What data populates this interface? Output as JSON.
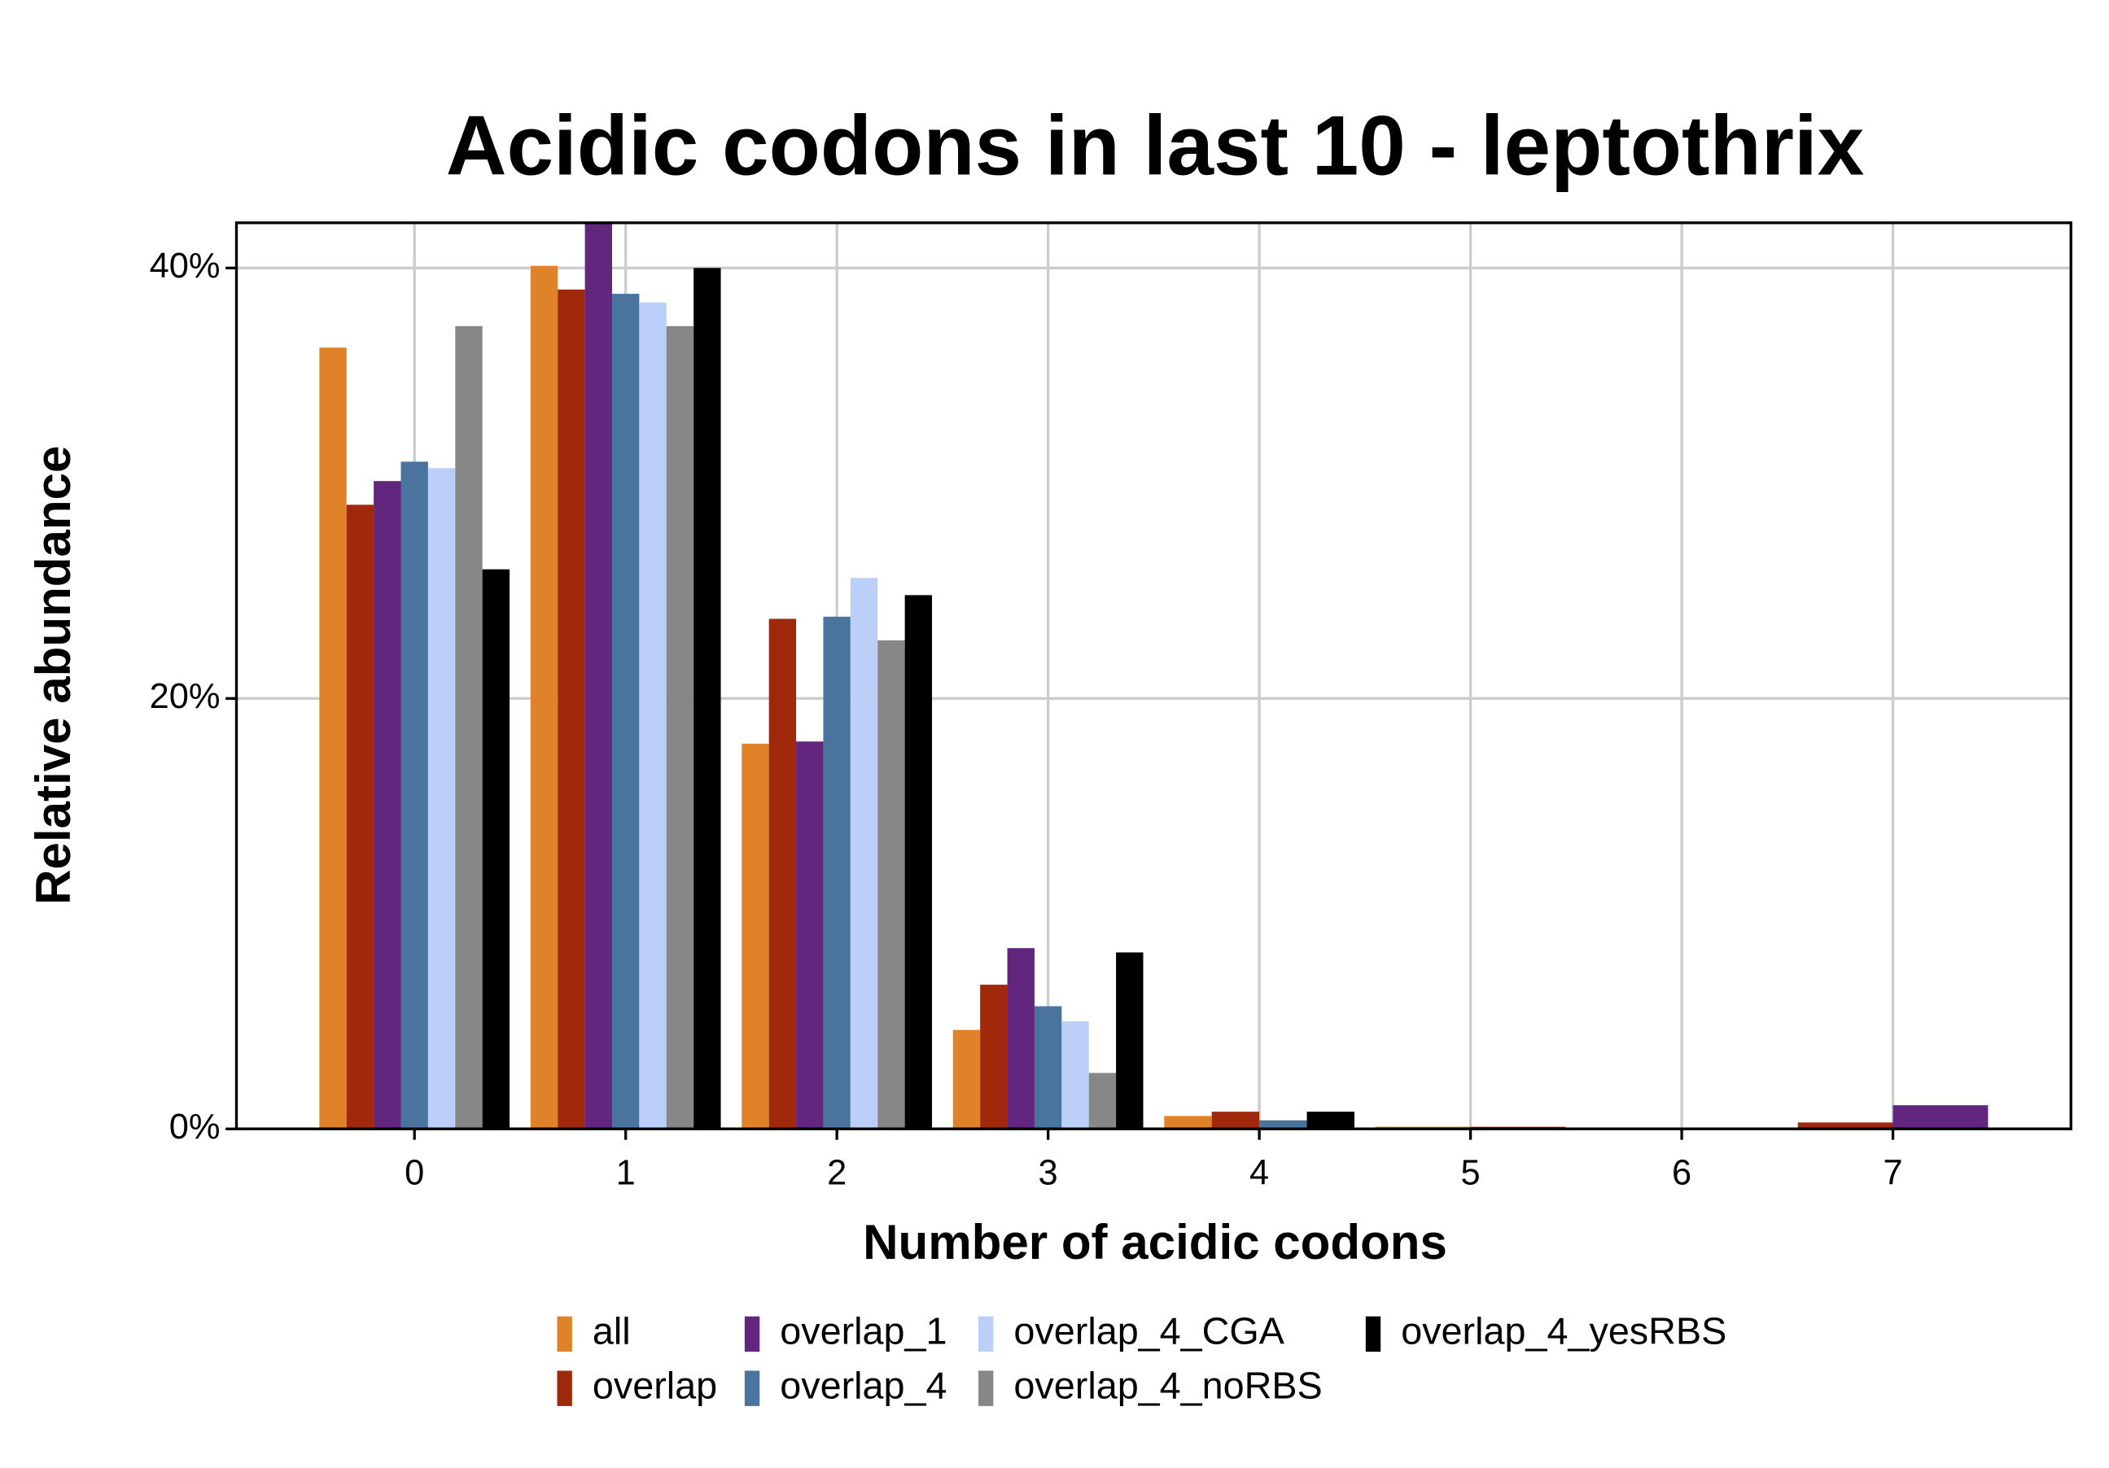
{
  "chart_data": {
    "type": "bar",
    "title": "Acidic codons in last 10 - leptothrix",
    "x_label": "Number of acidic codons",
    "y_label": "Relative abundance",
    "categories": [
      "0",
      "1",
      "2",
      "3",
      "4",
      "5",
      "6",
      "7"
    ],
    "series": [
      {
        "name": "all",
        "color": "#e08228",
        "values": [
          36.3,
          40.1,
          17.9,
          4.6,
          0.6,
          0.1,
          null,
          null
        ]
      },
      {
        "name": "overlap",
        "color": "#a0290c",
        "values": [
          29.0,
          39.0,
          23.7,
          6.7,
          0.8,
          0.1,
          null,
          0.3
        ]
      },
      {
        "name": "overlap_1",
        "color": "#62267e",
        "values": [
          30.1,
          42.5,
          18.0,
          8.4,
          null,
          null,
          null,
          1.1
        ]
      },
      {
        "name": "overlap_4",
        "color": "#4a739e",
        "values": [
          31.0,
          38.8,
          23.8,
          5.7,
          0.4,
          null,
          null,
          null
        ]
      },
      {
        "name": "overlap_4_CGA",
        "color": "#bccff8",
        "values": [
          30.7,
          38.4,
          25.6,
          5.0,
          null,
          null,
          null,
          null
        ]
      },
      {
        "name": "overlap_4_noRBS",
        "color": "#878787",
        "values": [
          37.3,
          37.3,
          22.7,
          2.6,
          null,
          null,
          null,
          null
        ]
      },
      {
        "name": "overlap_4_yesRBS",
        "color": "#000000",
        "values": [
          26.0,
          40.0,
          24.8,
          8.2,
          0.8,
          null,
          null,
          null
        ]
      }
    ],
    "ylim": [
      0,
      42.1
    ],
    "yticks": [
      {
        "value": 0,
        "label": "0%"
      },
      {
        "value": 20,
        "label": "20%"
      },
      {
        "value": 40,
        "label": "40%"
      }
    ],
    "grid": true,
    "legend": "bottom"
  }
}
